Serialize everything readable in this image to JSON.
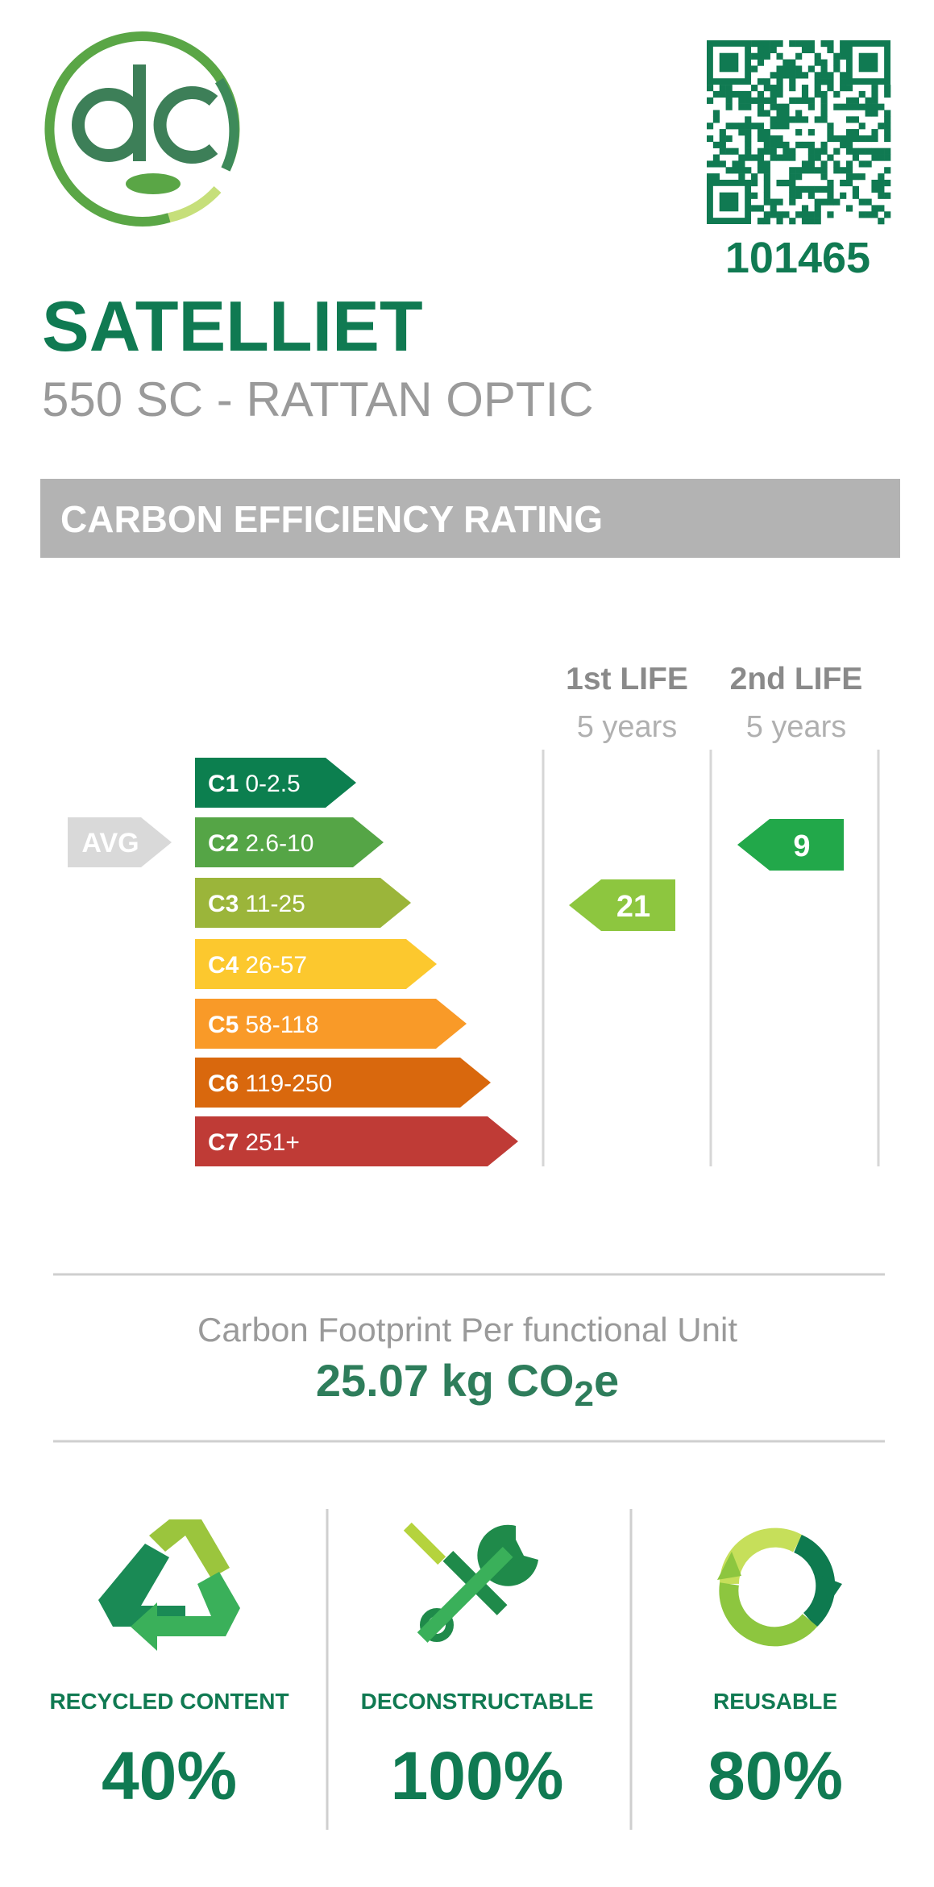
{
  "header": {
    "id": "101465"
  },
  "product": {
    "name": "SATELLIET",
    "subtitle": "550 SC - RATTAN OPTIC"
  },
  "rating": {
    "title": "CARBON EFFICIENCY RATING",
    "avg_label": "AVG",
    "classes": [
      {
        "code": "C1",
        "range": "0-2.5",
        "color": "#0c7f4f"
      },
      {
        "code": "C2",
        "range": "2.6-10",
        "color": "#55a546"
      },
      {
        "code": "C3",
        "range": "11-25",
        "color": "#9bb53a"
      },
      {
        "code": "C4",
        "range": "26-57",
        "color": "#fcc82e"
      },
      {
        "code": "C5",
        "range": "58-118",
        "color": "#f99a28"
      },
      {
        "code": "C6",
        "range": "119-250",
        "color": "#d9680d"
      },
      {
        "code": "C7",
        "range": "251+",
        "color": "#bf3b36"
      }
    ],
    "columns": [
      {
        "title": "1st LIFE",
        "subtitle": "5 years",
        "grade": "21",
        "color": "#8dc63f"
      },
      {
        "title": "2nd LIFE",
        "subtitle": "5 years",
        "grade": "9",
        "color": "#22a84a"
      }
    ]
  },
  "footprint": {
    "label": "Carbon Footprint Per functional Unit",
    "value": "25.07 kg CO",
    "subscript": "2",
    "suffix": "e"
  },
  "features": [
    {
      "label": "RECYCLED CONTENT",
      "value": "40%"
    },
    {
      "label": "DECONSTRUCTABLE",
      "value": "100%"
    },
    {
      "label": "REUSABLE",
      "value": "80%"
    }
  ]
}
